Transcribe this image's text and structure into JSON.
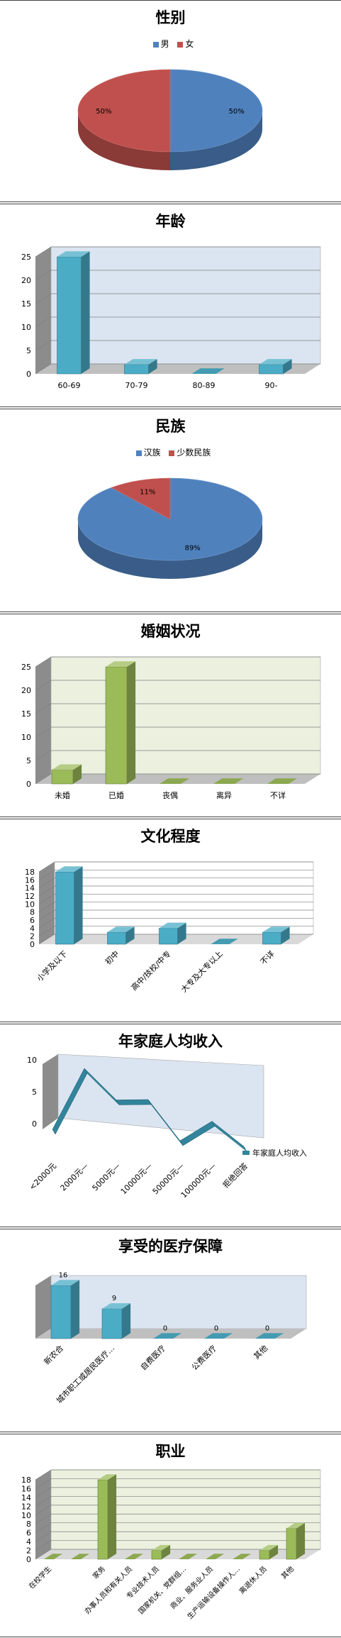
{
  "chart_data": [
    {
      "id": "gender",
      "type": "pie",
      "title": "性别",
      "labels": [
        "男",
        "女"
      ],
      "values": [
        50,
        50
      ],
      "value_labels": [
        "50%",
        "50%"
      ],
      "colors": [
        "#4f81bd",
        "#c0504d"
      ],
      "legend": "top"
    },
    {
      "id": "age",
      "type": "bar",
      "title": "年龄",
      "categories": [
        "60-69",
        "70-79",
        "80-89",
        "90-"
      ],
      "values": [
        25,
        2,
        0,
        2
      ],
      "ylim": [
        0,
        25
      ],
      "yticks": [
        "0",
        "5",
        "10",
        "15",
        "20",
        "25"
      ],
      "color": "#4bacc6",
      "grid": true
    },
    {
      "id": "ethnicity",
      "type": "pie",
      "title": "民族",
      "labels": [
        "汉族",
        "少数民族"
      ],
      "values": [
        89,
        11
      ],
      "value_labels": [
        "89%",
        "11%"
      ],
      "colors": [
        "#4f81bd",
        "#c0504d"
      ],
      "legend": "top"
    },
    {
      "id": "marital",
      "type": "bar",
      "title": "婚姻状况",
      "categories": [
        "未婚",
        "已婚",
        "丧偶",
        "离异",
        "不详"
      ],
      "values": [
        3,
        25,
        0,
        0,
        0
      ],
      "ylim": [
        0,
        25
      ],
      "yticks": [
        "0",
        "5",
        "10",
        "15",
        "20",
        "25"
      ],
      "color": "#9bbb59",
      "grid": true
    },
    {
      "id": "education",
      "type": "bar",
      "title": "文化程度",
      "categories": [
        "小学及以下",
        "初中",
        "高中/技校/中专",
        "大专及大专以上",
        "不详"
      ],
      "values": [
        18,
        3,
        4,
        0,
        3
      ],
      "ylim": [
        0,
        18
      ],
      "yticks": [
        "0",
        "2",
        "4",
        "6",
        "8",
        "10",
        "12",
        "14",
        "16",
        "18"
      ],
      "color": "#4bacc6",
      "grid": true
    },
    {
      "id": "income",
      "type": "line",
      "title": "年家庭人均收入",
      "categories": [
        "<2000元",
        "2000元—",
        "5000元—",
        "10000元—",
        "50000元—",
        "100000元—",
        "拒绝回答"
      ],
      "values": [
        0,
        10,
        5.5,
        6,
        0,
        3.5,
        0
      ],
      "series_name": "年家庭人均收入",
      "ylim": [
        0,
        10
      ],
      "yticks": [
        "0",
        "5",
        "10"
      ],
      "color": "#31849b",
      "legend": "right"
    },
    {
      "id": "insurance",
      "type": "bar",
      "title": "享受的医疗保障",
      "categories": [
        "新农合",
        "城市职工或居民医疗…",
        "自费医疗",
        "公费医疗",
        "其他"
      ],
      "values": [
        16,
        9,
        0,
        0,
        0
      ],
      "data_labels": [
        "16",
        "9",
        "0",
        "0",
        "0"
      ],
      "ylim": [
        0,
        16
      ],
      "color": "#4bacc6",
      "grid": false
    },
    {
      "id": "occupation",
      "type": "bar",
      "title": "职业",
      "categories": [
        "在校学生",
        "",
        "家务",
        "办事人员和有关人员",
        "专业技术人员",
        "国家机关、党群组…",
        "商业、服务业人员",
        "生产运输设备操作人…",
        "离退休人员",
        "其他"
      ],
      "values": [
        0,
        0,
        18,
        0,
        2,
        0,
        0,
        0,
        2,
        7
      ],
      "ylim": [
        0,
        18
      ],
      "yticks": [
        "0",
        "2",
        "4",
        "6",
        "8",
        "10",
        "12",
        "14",
        "16",
        "18"
      ],
      "color": "#9bbb59",
      "grid": true
    }
  ]
}
